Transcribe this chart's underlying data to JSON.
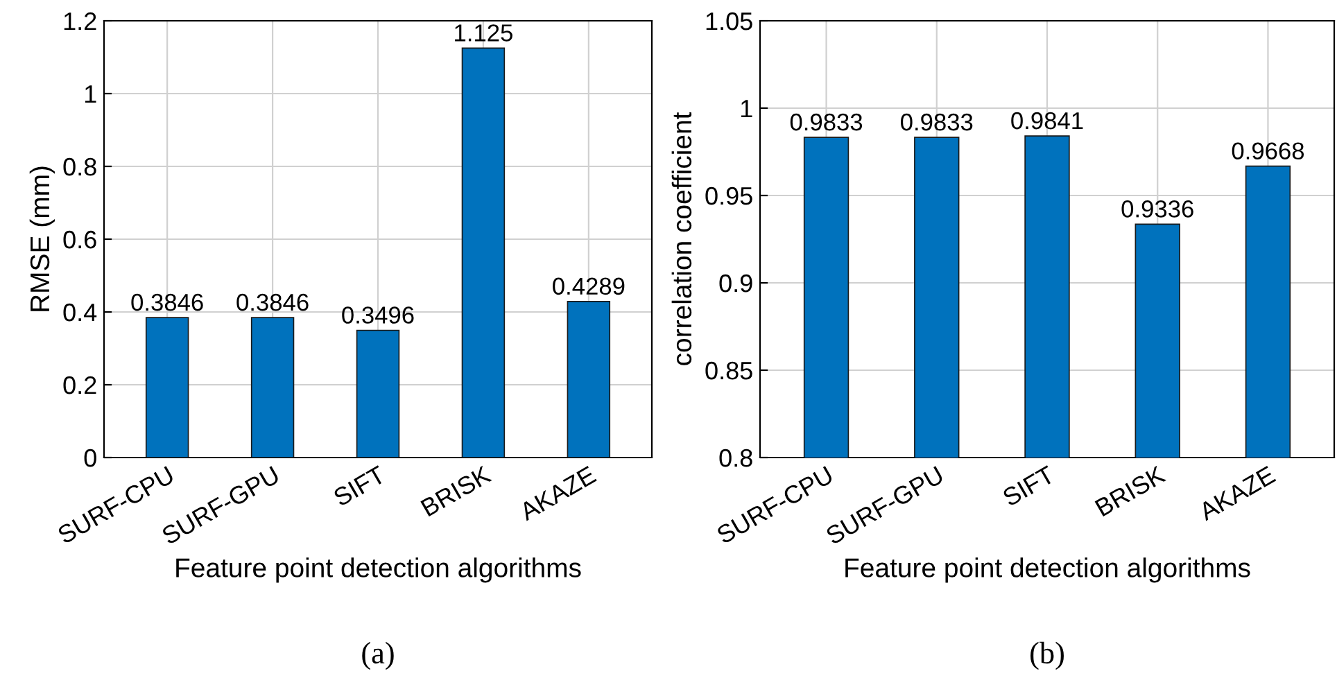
{
  "chart_data": [
    {
      "type": "bar",
      "categories": [
        "SURF-CPU",
        "SURF-GPU",
        "SIFT",
        "BRISK",
        "AKAZE"
      ],
      "values": [
        0.3846,
        0.3846,
        0.3496,
        1.125,
        0.4289
      ],
      "color": "#0072bd",
      "data_labels": true,
      "xlabel": "Feature point detection algorithms",
      "ylabel": "RMSE (mm)",
      "ylim": [
        0,
        1.2
      ],
      "yticks": [
        0,
        0.2,
        0.4,
        0.6,
        0.8,
        1,
        1.2
      ],
      "grid": true,
      "annotations": [
        "(a)"
      ]
    },
    {
      "type": "bar",
      "categories": [
        "SURF-CPU",
        "SURF-GPU",
        "SIFT",
        "BRISK",
        "AKAZE"
      ],
      "values": [
        0.9833,
        0.9833,
        0.9841,
        0.9336,
        0.9668
      ],
      "color": "#0072bd",
      "data_labels": true,
      "xlabel": "Feature point detection algorithms",
      "ylabel": "correlation coefficient",
      "ylim": [
        0.8,
        1.05
      ],
      "yticks": [
        0.8,
        0.85,
        0.9,
        0.95,
        1,
        1.05
      ],
      "grid": true,
      "annotations": [
        "(b)"
      ]
    }
  ]
}
